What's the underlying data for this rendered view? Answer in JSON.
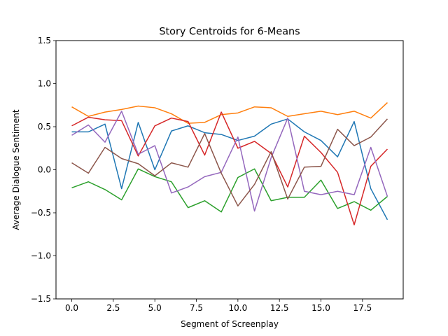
{
  "chart_data": {
    "type": "line",
    "title": "Story Centroids for 6-Means",
    "xlabel": "Segment of Screenplay",
    "ylabel": "Average Dialogue Sentiment",
    "xlim": [
      -0.95,
      19.95
    ],
    "ylim": [
      -1.5,
      1.5
    ],
    "xticks": [
      0.0,
      2.5,
      5.0,
      7.5,
      10.0,
      12.5,
      15.0,
      17.5
    ],
    "xtick_labels": [
      "0.0",
      "2.5",
      "5.0",
      "7.5",
      "10.0",
      "12.5",
      "15.0",
      "17.5"
    ],
    "yticks": [
      -1.5,
      -1.0,
      -0.5,
      0.0,
      0.5,
      1.0,
      1.5
    ],
    "ytick_labels": [
      "−1.5",
      "−1.0",
      "−0.5",
      "0.0",
      "0.5",
      "1.0",
      "1.5"
    ],
    "grid": false,
    "legend": "none",
    "x": [
      0,
      1,
      2,
      3,
      4,
      5,
      6,
      7,
      8,
      9,
      10,
      11,
      12,
      13,
      14,
      15,
      16,
      17,
      18,
      19
    ],
    "series": [
      {
        "color": "#1f77b4",
        "values": [
          0.44,
          0.44,
          0.53,
          -0.22,
          0.55,
          0.0,
          0.45,
          0.51,
          0.43,
          0.41,
          0.34,
          0.39,
          0.53,
          0.59,
          0.44,
          0.34,
          0.15,
          0.56,
          -0.22,
          -0.58
        ]
      },
      {
        "color": "#ff7f0e",
        "values": [
          0.73,
          0.62,
          0.67,
          0.7,
          0.74,
          0.72,
          0.65,
          0.54,
          0.55,
          0.64,
          0.66,
          0.73,
          0.72,
          0.62,
          0.65,
          0.68,
          0.64,
          0.68,
          0.6,
          0.78
        ]
      },
      {
        "color": "#2ca02c",
        "values": [
          -0.21,
          -0.14,
          -0.23,
          -0.35,
          0.01,
          -0.08,
          -0.14,
          -0.44,
          -0.36,
          -0.49,
          -0.09,
          0.01,
          -0.36,
          -0.32,
          -0.32,
          -0.12,
          -0.45,
          -0.37,
          -0.47,
          -0.31
        ]
      },
      {
        "color": "#d62728",
        "values": [
          0.51,
          0.61,
          0.58,
          0.57,
          0.16,
          0.51,
          0.6,
          0.56,
          0.17,
          0.67,
          0.25,
          0.33,
          0.19,
          -0.2,
          0.39,
          0.2,
          -0.03,
          -0.64,
          0.04,
          0.24
        ]
      },
      {
        "color": "#9467bd",
        "values": [
          0.4,
          0.52,
          0.32,
          0.68,
          0.18,
          0.28,
          -0.27,
          -0.2,
          -0.08,
          -0.03,
          0.38,
          -0.48,
          0.14,
          0.6,
          -0.25,
          -0.29,
          -0.25,
          -0.29,
          0.26,
          -0.31
        ]
      },
      {
        "color": "#8c564b",
        "values": [
          0.08,
          -0.04,
          0.26,
          0.13,
          0.07,
          -0.07,
          0.08,
          0.03,
          0.42,
          -0.04,
          -0.42,
          -0.17,
          0.21,
          -0.34,
          0.03,
          0.04,
          0.47,
          0.28,
          0.38,
          0.59
        ]
      }
    ]
  }
}
